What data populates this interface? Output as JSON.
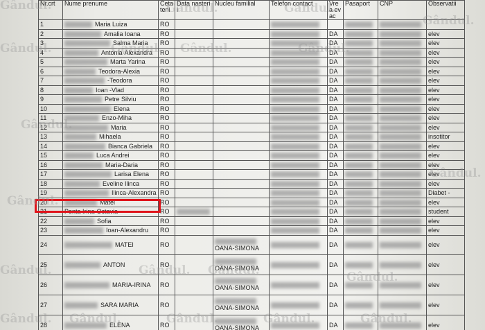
{
  "header": {
    "columns": [
      "Nr.crt",
      "Nume prenume",
      "Cetateni",
      "Data nasterii",
      "Nucleu familial",
      "Telefon contact",
      "Vrea evac",
      "Pasaport",
      "CNP",
      "Observatii"
    ]
  },
  "watermark": "Gândul.",
  "table": {
    "rows": [
      {
        "nr": "1",
        "name": "Maria Luiza",
        "cet": "RO",
        "vrea": "",
        "obs": ""
      },
      {
        "nr": "2",
        "name": "Amalia Ioana",
        "cet": "RO",
        "vrea": "DA",
        "obs": "elev"
      },
      {
        "nr": "3",
        "name": "Salma Maria",
        "cet": "RO",
        "vrea": "DA",
        "obs": "elev"
      },
      {
        "nr": "4",
        "name": "Antonia-Alexandra",
        "cet": "RO",
        "vrea": "DA",
        "obs": "elev"
      },
      {
        "nr": "5",
        "name": "Marta Yarina",
        "cet": "RO",
        "vrea": "DA",
        "obs": "elev"
      },
      {
        "nr": "6",
        "name": "Teodora-Alexia",
        "cet": "RO",
        "vrea": "DA",
        "obs": "elev"
      },
      {
        "nr": "7",
        "name": "-Teodora",
        "cet": "RO",
        "vrea": "DA",
        "obs": "elev"
      },
      {
        "nr": "8",
        "name": "Ioan -Vlad",
        "cet": "RO",
        "vrea": "DA",
        "obs": "elev"
      },
      {
        "nr": "9",
        "name": "Petre Silviu",
        "cet": "RO",
        "vrea": "DA",
        "obs": "elev"
      },
      {
        "nr": "10",
        "name": "Elena",
        "cet": "RO",
        "vrea": "DA",
        "obs": "elev"
      },
      {
        "nr": "11",
        "name": "Enzo-Miha",
        "cet": "RO",
        "vrea": "DA",
        "obs": "elev"
      },
      {
        "nr": "12",
        "name": "Maria",
        "cet": "RO",
        "vrea": "DA",
        "obs": "elev"
      },
      {
        "nr": "13",
        "name": "Mihaela",
        "cet": "RO",
        "vrea": "DA",
        "obs": "insotitor"
      },
      {
        "nr": "14",
        "name": "Bianca Gabriela",
        "cet": "RO",
        "vrea": "DA",
        "obs": "elev"
      },
      {
        "nr": "15",
        "name": "Luca Andrei",
        "cet": "RO",
        "vrea": "DA",
        "obs": "elev"
      },
      {
        "nr": "16",
        "name": "Maria-Daria",
        "cet": "RO",
        "vrea": "DA",
        "obs": "elev"
      },
      {
        "nr": "17",
        "name": "Larisa Elena",
        "cet": "RO",
        "vrea": "DA",
        "obs": "elev"
      },
      {
        "nr": "18",
        "name": "Eveline Ilinca",
        "cet": "RO",
        "vrea": "DA",
        "obs": "elev"
      },
      {
        "nr": "19",
        "name": "Ilinca-Alexandra",
        "cet": "RO",
        "vrea": "DA",
        "obs": "Diabet -"
      },
      {
        "nr": "20",
        "name": "Matei",
        "cet": "RO",
        "vrea": "DA",
        "obs": "elev"
      },
      {
        "nr": "21",
        "name": "Ponta Irina-Octavia",
        "cet": "RO",
        "vrea": "DA",
        "obs": "student"
      },
      {
        "nr": "22",
        "name": "Sofia",
        "cet": "RO",
        "vrea": "DA",
        "obs": "elev"
      },
      {
        "nr": "23",
        "name": "Ioan-Alexandru",
        "cet": "RO",
        "vrea": "DA",
        "obs": "elev"
      },
      {
        "nr": "24",
        "name": "MATEI",
        "cet": "RO",
        "nucleu": "OANA-SIMONA",
        "vrea": "DA",
        "obs": "elev"
      },
      {
        "nr": "25",
        "name": "ANTON",
        "cet": "RO",
        "nucleu": "OANA-SIMONA",
        "vrea": "DA",
        "obs": "elev"
      },
      {
        "nr": "26",
        "name": "MARIA-IRINA",
        "cet": "RO",
        "nucleu": "OANA-SIMONA",
        "vrea": "DA",
        "obs": "elev"
      },
      {
        "nr": "27",
        "name": "SARA MARIA",
        "cet": "RO",
        "nucleu": "OANA-SIMONA",
        "vrea": "DA",
        "obs": "elev"
      },
      {
        "nr": "28",
        "name": "ELENA",
        "cet": "RO",
        "nucleu": "OANA-SIMONA",
        "vrea": "DA",
        "obs": "elev"
      }
    ]
  }
}
